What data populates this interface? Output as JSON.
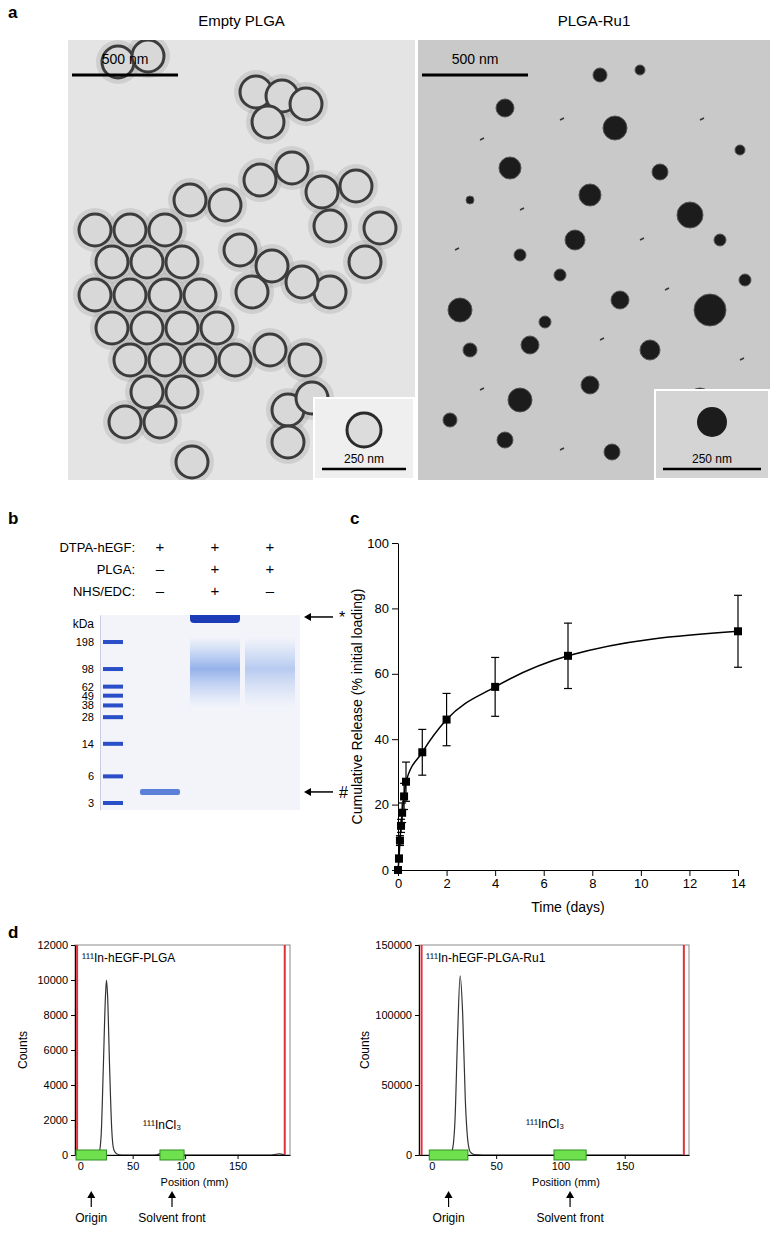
{
  "chart_data": [
    {
      "type": "image",
      "panel": "a",
      "images": [
        {
          "title": "Empty PLGA",
          "scale_bar": "500 nm",
          "inset_scale_bar": "250 nm"
        },
        {
          "title": "PLGA-Ru1",
          "scale_bar": "500 nm",
          "inset_scale_bar": "250 nm"
        }
      ]
    },
    {
      "type": "gel",
      "panel": "b",
      "row_labels": [
        "DTPA-hEGF:",
        "PLGA:",
        "NHS/EDC:"
      ],
      "lanes": [
        [
          "+",
          "–",
          "–"
        ],
        [
          "+",
          "+",
          "+"
        ],
        [
          "+",
          "+",
          "–"
        ]
      ],
      "y_label": "kDa",
      "log": "y",
      "ylim": [
        400,
        2.5
      ],
      "yticks": [
        198,
        98,
        62,
        49,
        38,
        28,
        14,
        6,
        3
      ],
      "bands": [
        [
          4
        ],
        [
          380,
          90
        ],
        [
          90
        ]
      ],
      "annotations": [
        {
          "text": "*",
          "value": 380
        },
        {
          "text": "#",
          "value": 4
        }
      ]
    },
    {
      "type": "line",
      "panel": "c",
      "x_label": "Time (days)",
      "y_label": "Cumulative Release (% initial loading)",
      "x": [
        0,
        0.04,
        0.08,
        0.125,
        0.17,
        0.25,
        0.33,
        1,
        2,
        4,
        7,
        14
      ],
      "values": [
        0,
        3.5,
        9,
        13.5,
        17.5,
        22.5,
        27,
        36,
        46,
        56,
        65.5,
        73
      ],
      "errors": [
        0,
        1,
        1.5,
        2,
        3,
        4,
        6,
        7,
        8,
        9,
        10,
        11
      ],
      "xlim": [
        0,
        14
      ],
      "xticks": [
        0,
        2,
        4,
        6,
        8,
        10,
        12,
        14
      ],
      "ylim": [
        0,
        100
      ],
      "yticks": [
        0,
        20,
        40,
        60,
        80,
        100
      ],
      "color": "#000000",
      "marker": "square"
    },
    {
      "type": "line",
      "panel": "d",
      "title": "¹¹¹In-hEGF-PLGA",
      "x_label": "Position (mm)",
      "y_label": "Counts",
      "x": [
        0,
        10,
        15,
        18,
        20,
        22,
        24,
        25,
        26,
        28,
        30,
        32,
        35,
        40,
        60,
        70,
        75,
        78,
        80,
        82,
        85,
        88,
        92,
        120,
        150,
        180,
        190,
        195
      ],
      "values": [
        0,
        0,
        20,
        150,
        1200,
        5000,
        9000,
        10000,
        9200,
        5000,
        1500,
        300,
        60,
        0,
        0,
        0,
        50,
        150,
        200,
        180,
        100,
        30,
        0,
        0,
        0,
        0,
        60,
        0
      ],
      "xlim": [
        -5,
        200
      ],
      "xticks": [
        0,
        50,
        100,
        150
      ],
      "ylim": [
        0,
        12000
      ],
      "yticks": [
        0,
        2000,
        4000,
        6000,
        8000,
        10000,
        12000
      ],
      "color": "#333333",
      "boundaries": [
        -3,
        195
      ],
      "regions": [
        {
          "label": "Origin",
          "range": [
            -4,
            25
          ]
        },
        {
          "label": "Solvent front",
          "range": [
            76,
            99
          ]
        }
      ],
      "annotations": [
        {
          "text": "¹¹¹InCl₃",
          "x": 78,
          "y": 1500
        }
      ]
    },
    {
      "type": "line",
      "title": "¹¹¹In-hEGF-PLGA-Ru1",
      "x_label": "Position (mm)",
      "y_label": "Counts",
      "x": [
        0,
        10,
        14,
        16,
        18,
        20,
        22,
        24,
        26,
        28,
        30,
        33,
        40,
        60,
        100,
        150,
        195
      ],
      "values": [
        0,
        0,
        500,
        4000,
        25000,
        85000,
        128000,
        100000,
        40000,
        10000,
        2000,
        300,
        0,
        0,
        0,
        0,
        0
      ],
      "xlim": [
        -10,
        200
      ],
      "xticks": [
        0,
        50,
        100,
        150
      ],
      "ylim": [
        0,
        150000
      ],
      "yticks": [
        0,
        50000,
        100000,
        150000
      ],
      "color": "#333333",
      "boundaries": [
        -8,
        196
      ],
      "regions": [
        {
          "label": "Origin",
          "range": [
            -2,
            28
          ]
        },
        {
          "label": "Solvent front",
          "range": [
            95,
            120
          ]
        }
      ],
      "annotations": [
        {
          "text": "¹¹¹InCl₃",
          "x": 88,
          "y": 19000
        }
      ]
    }
  ]
}
